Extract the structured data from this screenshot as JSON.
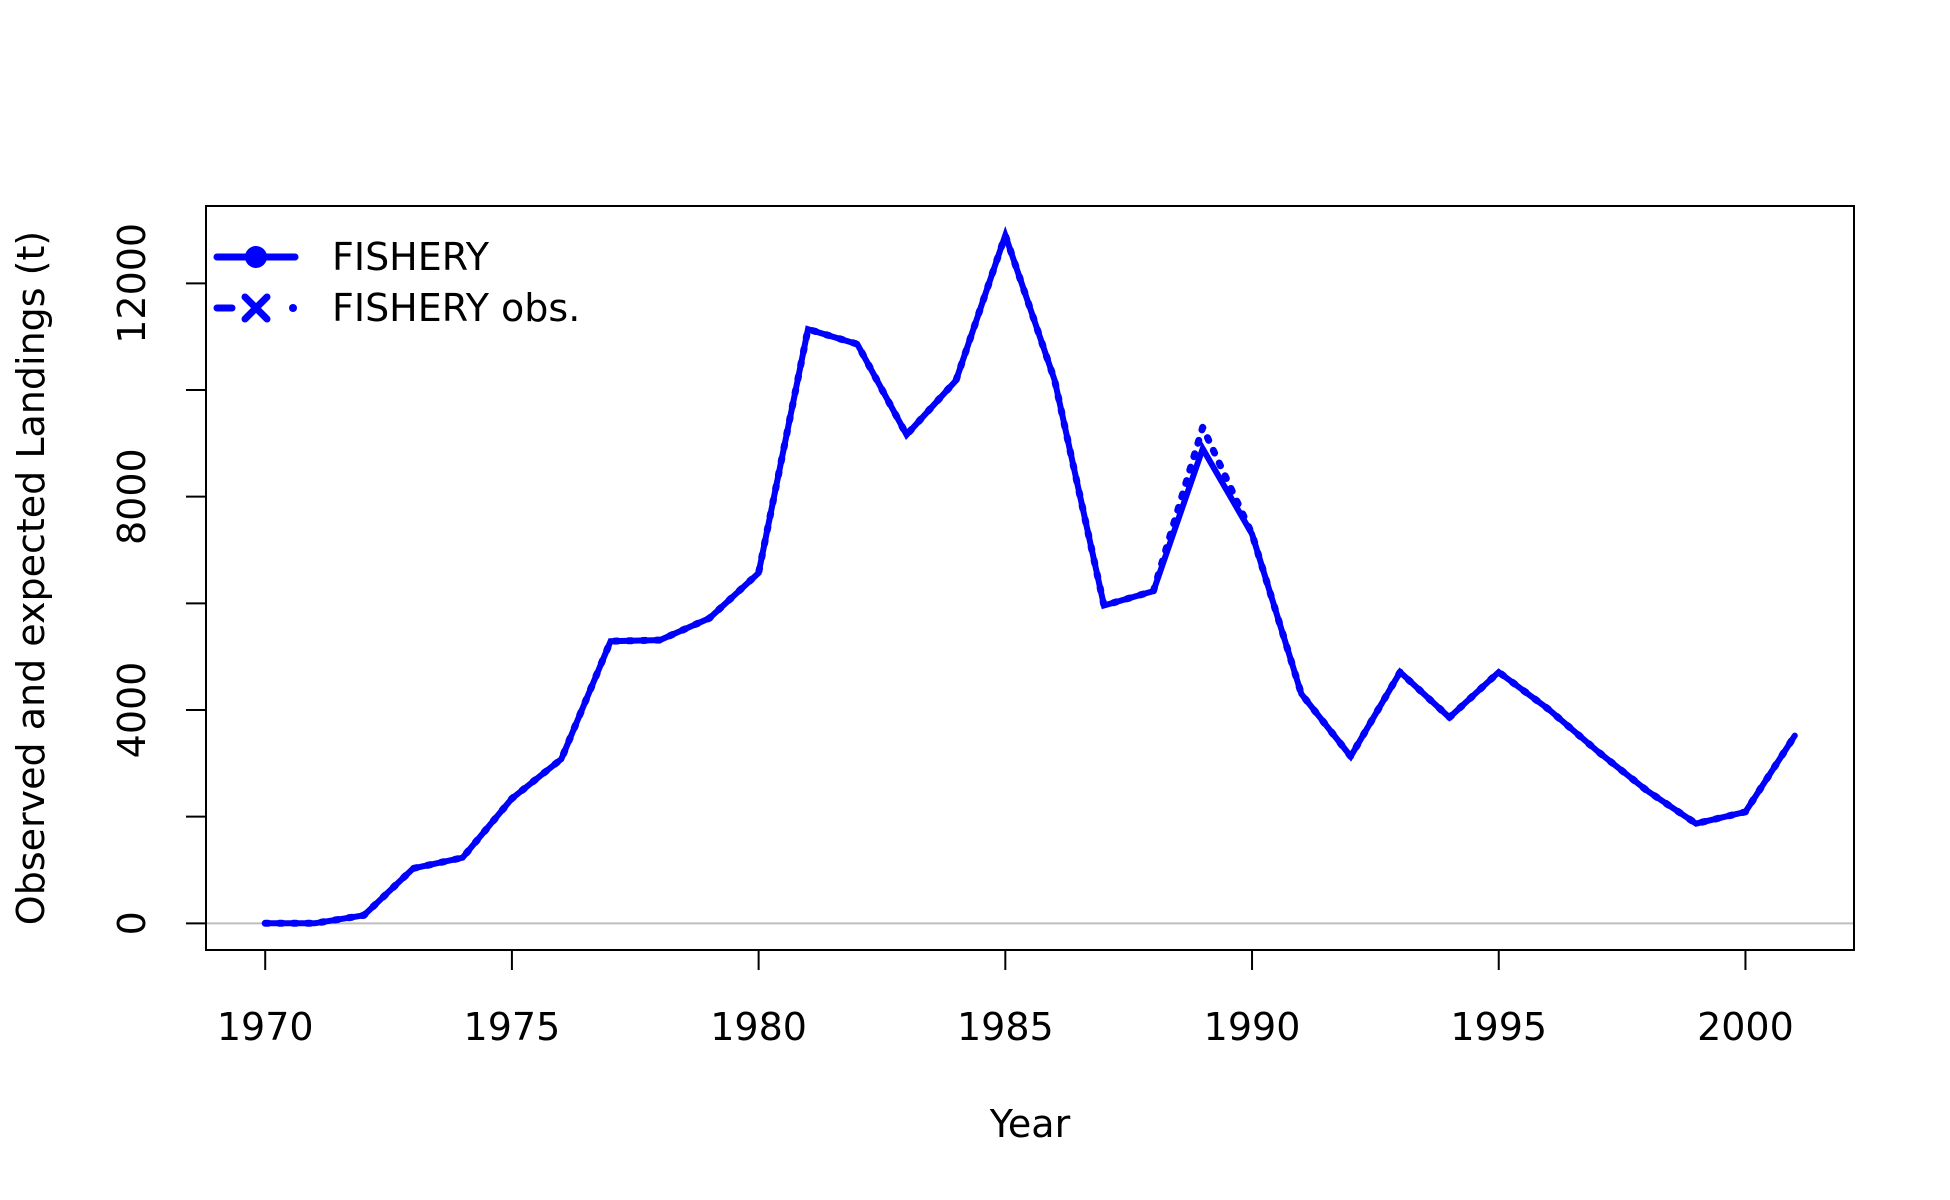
{
  "chart_data": {
    "type": "line",
    "title": "",
    "xlabel": "Year",
    "ylabel": "Observed and expected Landings (t)",
    "xlim": [
      1968.8,
      2002.2
    ],
    "ylim": [
      -500,
      13450
    ],
    "x_ticks": [
      1970,
      1975,
      1980,
      1985,
      1990,
      1995,
      2000
    ],
    "x_tick_labels": [
      "1970",
      "1975",
      "1980",
      "1985",
      "1990",
      "1995",
      "2000"
    ],
    "y_ticks": [
      0,
      2000,
      4000,
      6000,
      8000,
      10000,
      12000
    ],
    "y_tick_labels": [
      "0",
      "",
      "4000",
      "",
      "8000",
      "",
      "12000"
    ],
    "grid": false,
    "reference_line": {
      "y": 0,
      "color": "#bebebe"
    },
    "legend_position": "top-left",
    "series": [
      {
        "name": "FISHERY",
        "color": "#0000ff",
        "style": "solid",
        "marker": "circle",
        "x": [
          1970,
          1971,
          1972,
          1973,
          1974,
          1975,
          1976,
          1977,
          1978,
          1979,
          1980,
          1981,
          1982,
          1983,
          1984,
          1985,
          1986,
          1987,
          1988,
          1989,
          1990,
          1991,
          1992,
          1993,
          1994,
          1995,
          1996,
          1997,
          1998,
          1999,
          2000,
          2001
        ],
        "values": [
          0,
          0,
          150,
          1030,
          1230,
          2340,
          3080,
          5290,
          5310,
          5720,
          6570,
          11140,
          10860,
          9160,
          10180,
          12900,
          10180,
          5960,
          6230,
          8900,
          7300,
          4300,
          3130,
          4710,
          3860,
          4710,
          4020,
          3230,
          2490,
          1870,
          2090,
          3520
        ]
      },
      {
        "name": "FISHERY obs.",
        "color": "#0000ff",
        "style": "dotted",
        "marker": "x",
        "x": [
          1970,
          1971,
          1972,
          1973,
          1974,
          1975,
          1976,
          1977,
          1978,
          1979,
          1980,
          1981,
          1982,
          1983,
          1984,
          1985,
          1986,
          1987,
          1988,
          1989,
          1990,
          1991,
          1992,
          1993,
          1994,
          1995,
          1996,
          1997,
          1998,
          1999,
          2000,
          2001
        ],
        "values": [
          0,
          0,
          150,
          1030,
          1230,
          2340,
          3080,
          5290,
          5310,
          5720,
          6570,
          11140,
          10860,
          9160,
          10180,
          12900,
          10180,
          5960,
          6230,
          9300,
          7300,
          4300,
          3130,
          4710,
          3860,
          4710,
          4020,
          3230,
          2490,
          1870,
          2090,
          3520
        ]
      }
    ]
  }
}
